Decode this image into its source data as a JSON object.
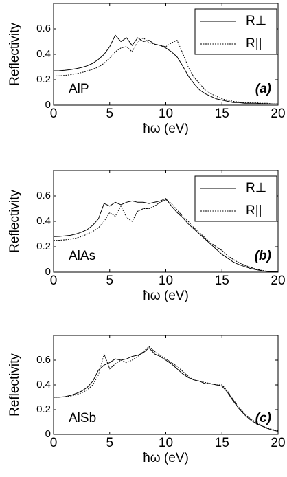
{
  "chart_data": [
    {
      "type": "line",
      "x_label": "ħω  (eV)",
      "y_label": "Reflectivity",
      "label": "AlP",
      "tag": "(a)",
      "tag_color": "#5555dd",
      "xlim": [
        0,
        20
      ],
      "xticks": [
        0,
        5,
        10,
        15,
        20
      ],
      "ylim": [
        0,
        0.8
      ],
      "yticks": [
        0,
        0.2,
        0.4,
        0.6
      ],
      "legend": true,
      "x": [
        0,
        0.5,
        1,
        1.5,
        2,
        2.5,
        3,
        3.5,
        4,
        4.5,
        5,
        5.5,
        6,
        6.5,
        7,
        7.5,
        8,
        8.5,
        9,
        9.5,
        10,
        10.5,
        11,
        11.5,
        12,
        12.5,
        13,
        13.5,
        14,
        14.5,
        15,
        15.5,
        16,
        16.5,
        17,
        17.5,
        18,
        18.5,
        19,
        19.5,
        20
      ],
      "series": [
        {
          "name": "R⊥",
          "color": "#000000",
          "style": "solid",
          "values": [
            0.27,
            0.271,
            0.274,
            0.28,
            0.287,
            0.297,
            0.31,
            0.33,
            0.36,
            0.4,
            0.46,
            0.55,
            0.5,
            0.53,
            0.47,
            0.53,
            0.5,
            0.51,
            0.48,
            0.47,
            0.45,
            0.42,
            0.38,
            0.31,
            0.23,
            0.17,
            0.12,
            0.09,
            0.07,
            0.05,
            0.04,
            0.03,
            0.02,
            0.02,
            0.015,
            0.015,
            0.015,
            0.012,
            0.01,
            0.01,
            0.01
          ]
        },
        {
          "name": "R||",
          "color": "#000000",
          "style": "dotted",
          "values": [
            0.23,
            0.231,
            0.234,
            0.24,
            0.247,
            0.256,
            0.268,
            0.283,
            0.3,
            0.33,
            0.37,
            0.42,
            0.45,
            0.46,
            0.42,
            0.5,
            0.53,
            0.49,
            0.48,
            0.47,
            0.46,
            0.49,
            0.51,
            0.41,
            0.3,
            0.22,
            0.17,
            0.12,
            0.09,
            0.07,
            0.05,
            0.04,
            0.03,
            0.025,
            0.02,
            0.02,
            0.02,
            0.015,
            0.015,
            0.01,
            0.01
          ]
        }
      ]
    },
    {
      "type": "line",
      "x_label": "ħω  (eV)",
      "y_label": "Reflectivity",
      "label": "AlAs",
      "tag": "(b)",
      "tag_color": "#5555dd",
      "xlim": [
        0,
        20
      ],
      "xticks": [
        0,
        5,
        10,
        15,
        20
      ],
      "ylim": [
        0,
        0.8
      ],
      "yticks": [
        0,
        0.2,
        0.4,
        0.6
      ],
      "legend": true,
      "x": [
        0,
        0.5,
        1,
        1.5,
        2,
        2.5,
        3,
        3.5,
        4,
        4.5,
        5,
        5.5,
        6,
        6.5,
        7,
        7.5,
        8,
        8.5,
        9,
        9.5,
        10,
        10.5,
        11,
        11.5,
        12,
        12.5,
        13,
        13.5,
        14,
        14.5,
        15,
        15.5,
        16,
        16.5,
        17,
        17.5,
        18,
        18.5,
        19,
        19.5,
        20
      ],
      "series": [
        {
          "name": "R⊥",
          "color": "#000000",
          "style": "solid",
          "values": [
            0.28,
            0.281,
            0.285,
            0.29,
            0.3,
            0.315,
            0.335,
            0.37,
            0.42,
            0.54,
            0.52,
            0.55,
            0.53,
            0.55,
            0.56,
            0.55,
            0.55,
            0.54,
            0.55,
            0.56,
            0.58,
            0.52,
            0.47,
            0.43,
            0.38,
            0.34,
            0.3,
            0.26,
            0.22,
            0.18,
            0.14,
            0.11,
            0.08,
            0.06,
            0.045,
            0.03,
            0.02,
            0.012,
            0.006,
            0.003,
            0.002
          ]
        },
        {
          "name": "R||",
          "color": "#000000",
          "style": "dotted",
          "values": [
            0.25,
            0.251,
            0.254,
            0.26,
            0.268,
            0.28,
            0.3,
            0.32,
            0.35,
            0.4,
            0.47,
            0.44,
            0.52,
            0.43,
            0.4,
            0.48,
            0.5,
            0.5,
            0.52,
            0.55,
            0.57,
            0.54,
            0.49,
            0.44,
            0.4,
            0.35,
            0.31,
            0.27,
            0.23,
            0.2,
            0.17,
            0.13,
            0.1,
            0.075,
            0.055,
            0.04,
            0.025,
            0.015,
            0.008,
            0.004,
            0.002
          ]
        }
      ]
    },
    {
      "type": "line",
      "x_label": "ħω  (eV)",
      "y_label": "Reflectivity",
      "label": "AlSb",
      "tag": "(c)",
      "tag_color": "#5555dd",
      "xlim": [
        0,
        20
      ],
      "xticks": [
        0,
        5,
        10,
        15,
        20
      ],
      "ylim": [
        0,
        0.8
      ],
      "yticks": [
        0,
        0.2,
        0.4,
        0.6
      ],
      "legend": false,
      "x": [
        0,
        0.5,
        1,
        1.5,
        2,
        2.5,
        3,
        3.5,
        4,
        4.5,
        5,
        5.5,
        6,
        6.5,
        7,
        7.5,
        8,
        8.5,
        9,
        9.5,
        10,
        10.5,
        11,
        11.5,
        12,
        12.5,
        13,
        13.5,
        14,
        14.5,
        15,
        15.5,
        16,
        16.5,
        17,
        17.5,
        18,
        18.5,
        19,
        19.5,
        20
      ],
      "series": [
        {
          "color": "#000000",
          "style": "solid",
          "values": [
            0.3,
            0.301,
            0.305,
            0.315,
            0.33,
            0.35,
            0.38,
            0.43,
            0.52,
            0.56,
            0.58,
            0.61,
            0.6,
            0.61,
            0.63,
            0.64,
            0.66,
            0.7,
            0.65,
            0.63,
            0.6,
            0.57,
            0.53,
            0.49,
            0.46,
            0.44,
            0.43,
            0.41,
            0.41,
            0.4,
            0.39,
            0.34,
            0.27,
            0.21,
            0.16,
            0.12,
            0.09,
            0.07,
            0.05,
            0.035,
            0.025
          ]
        },
        {
          "color": "#000000",
          "style": "dotted",
          "values": [
            0.3,
            0.301,
            0.304,
            0.31,
            0.32,
            0.335,
            0.36,
            0.4,
            0.48,
            0.65,
            0.53,
            0.57,
            0.6,
            0.58,
            0.6,
            0.63,
            0.67,
            0.71,
            0.67,
            0.64,
            0.61,
            0.58,
            0.55,
            0.51,
            0.47,
            0.44,
            0.43,
            0.42,
            0.41,
            0.4,
            0.4,
            0.35,
            0.28,
            0.22,
            0.17,
            0.13,
            0.1,
            0.075,
            0.055,
            0.04,
            0.03
          ]
        }
      ]
    }
  ]
}
